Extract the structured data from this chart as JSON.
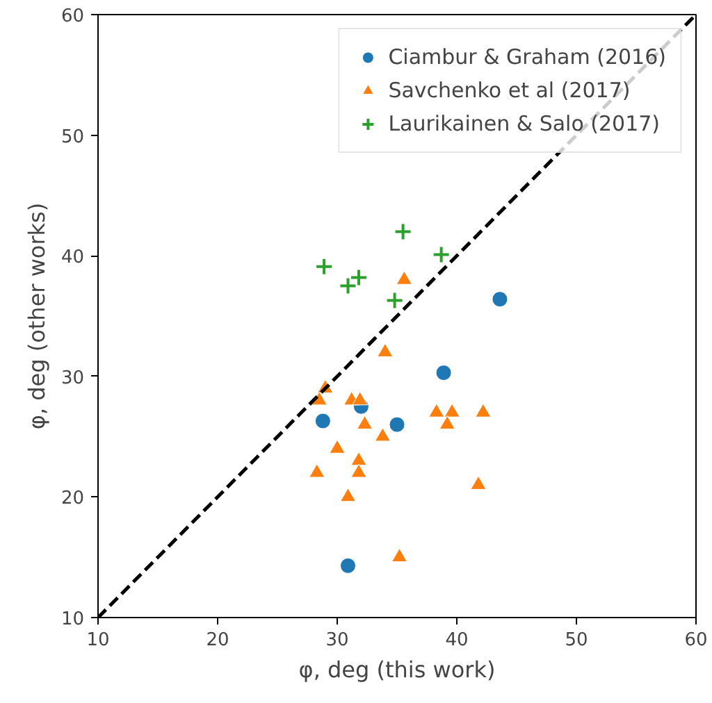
{
  "chart_data": {
    "type": "scatter",
    "xlabel": "φ, deg (this work)",
    "ylabel": "φ, deg (other works)",
    "xlim": [
      10,
      60
    ],
    "ylim": [
      10,
      60
    ],
    "xticks": [
      10,
      20,
      30,
      40,
      50,
      60
    ],
    "yticks": [
      10,
      20,
      30,
      40,
      50,
      60
    ],
    "grid": false,
    "legend": "top right",
    "series": [
      {
        "name": "Ciambur & Graham (2016)",
        "color": "#1f77b4",
        "marker": "circle",
        "x": [
          28.8,
          32.0,
          35.0,
          38.9,
          43.6,
          30.9
        ],
        "values": [
          26.3,
          27.5,
          26.0,
          30.3,
          36.4,
          14.3
        ]
      },
      {
        "name": "Savchenko et al (2017)",
        "color": "#ff7f0e",
        "marker": "triangle",
        "x": [
          28.5,
          29.0,
          28.3,
          30.0,
          30.9,
          31.2,
          31.9,
          31.8,
          31.8,
          32.3,
          34.0,
          33.8,
          35.6,
          35.2,
          38.3,
          39.6,
          39.2,
          42.2,
          41.8
        ],
        "values": [
          28,
          29,
          22,
          24,
          20,
          28,
          28,
          23,
          22,
          26,
          32,
          25,
          38,
          15,
          27,
          27,
          26,
          27,
          21
        ]
      },
      {
        "name": "Laurikainen & Salo (2017)",
        "color": "#2ca02c",
        "marker": "cross",
        "x": [
          28.9,
          30.9,
          31.8,
          35.5,
          38.7,
          34.8
        ],
        "values": [
          39.1,
          37.5,
          38.2,
          42.0,
          40.1,
          36.3
        ]
      },
      {
        "type": "line",
        "line_style": "dashed",
        "color": "#000000",
        "x": [
          10,
          60
        ],
        "values": [
          10,
          60
        ]
      }
    ]
  }
}
